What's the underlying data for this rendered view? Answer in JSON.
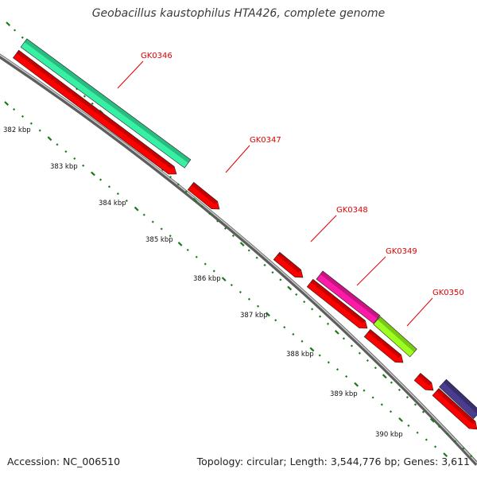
{
  "title": "Geobacillus kaustophilus HTA426, complete genome",
  "footer": {
    "accession": "Accession: NC_006510",
    "topology": "Topology: circular; Length: 3,544,776 bp; Genes: 3,611"
  },
  "colors": {
    "backbone": "#8c8c8c",
    "tick": "#1a7a1a",
    "gene_label": "#e00000"
  },
  "scale": {
    "labels": [
      "382 kbp",
      "383 kbp",
      "384 kbp",
      "385 kbp",
      "386 kbp",
      "387 kbp",
      "388 kbp",
      "389 kbp",
      "390 kbp"
    ]
  },
  "genes": [
    {
      "label": "GK0346",
      "strand": "forward",
      "color": "#36f0a4"
    },
    {
      "label": "GK0347",
      "strand": "forward",
      "color": "#ff0000"
    },
    {
      "label": "GK0348",
      "strand": "forward",
      "color": "#ff0000"
    },
    {
      "label": "GK0349",
      "strand": "forward",
      "color": "#ff1aa8"
    },
    {
      "label": "GK0350",
      "strand": "forward",
      "color": "#9cff1e"
    }
  ]
}
